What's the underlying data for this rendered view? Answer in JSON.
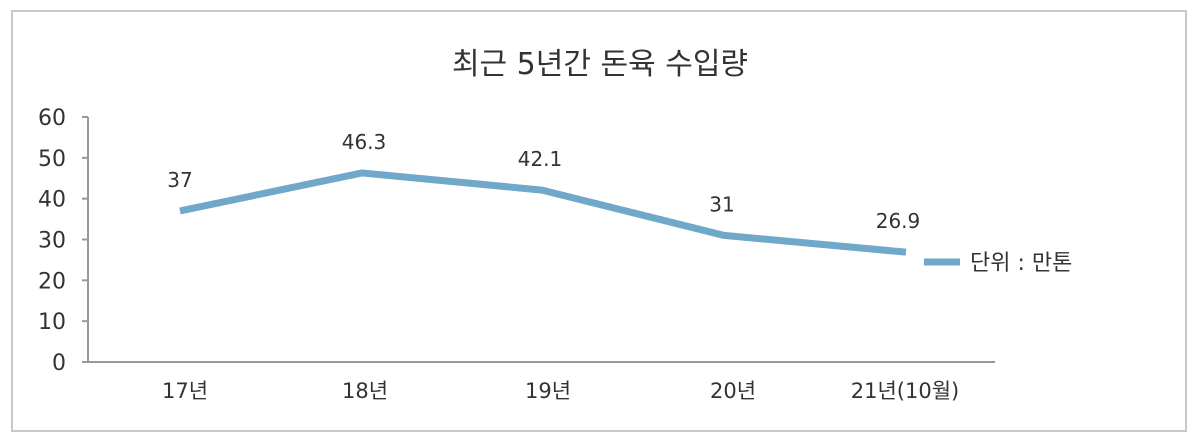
{
  "chart_data": {
    "type": "line",
    "title": "최근 5년간 돈육 수입량",
    "categories": [
      "17년",
      "18년",
      "19년",
      "20년",
      "21년(10월)"
    ],
    "series": [
      {
        "name": "단위 : 만톤",
        "values": [
          37,
          46.3,
          42.1,
          31,
          26.9
        ],
        "labels": [
          "37",
          "46.3",
          "42.1",
          "31",
          "26.9"
        ]
      }
    ],
    "ylim": [
      0,
      60
    ],
    "yticks": [
      "0",
      "10",
      "20",
      "30",
      "40",
      "50",
      "60"
    ],
    "grid": false,
    "legend": "right",
    "line_color": "#6fa8c8"
  }
}
